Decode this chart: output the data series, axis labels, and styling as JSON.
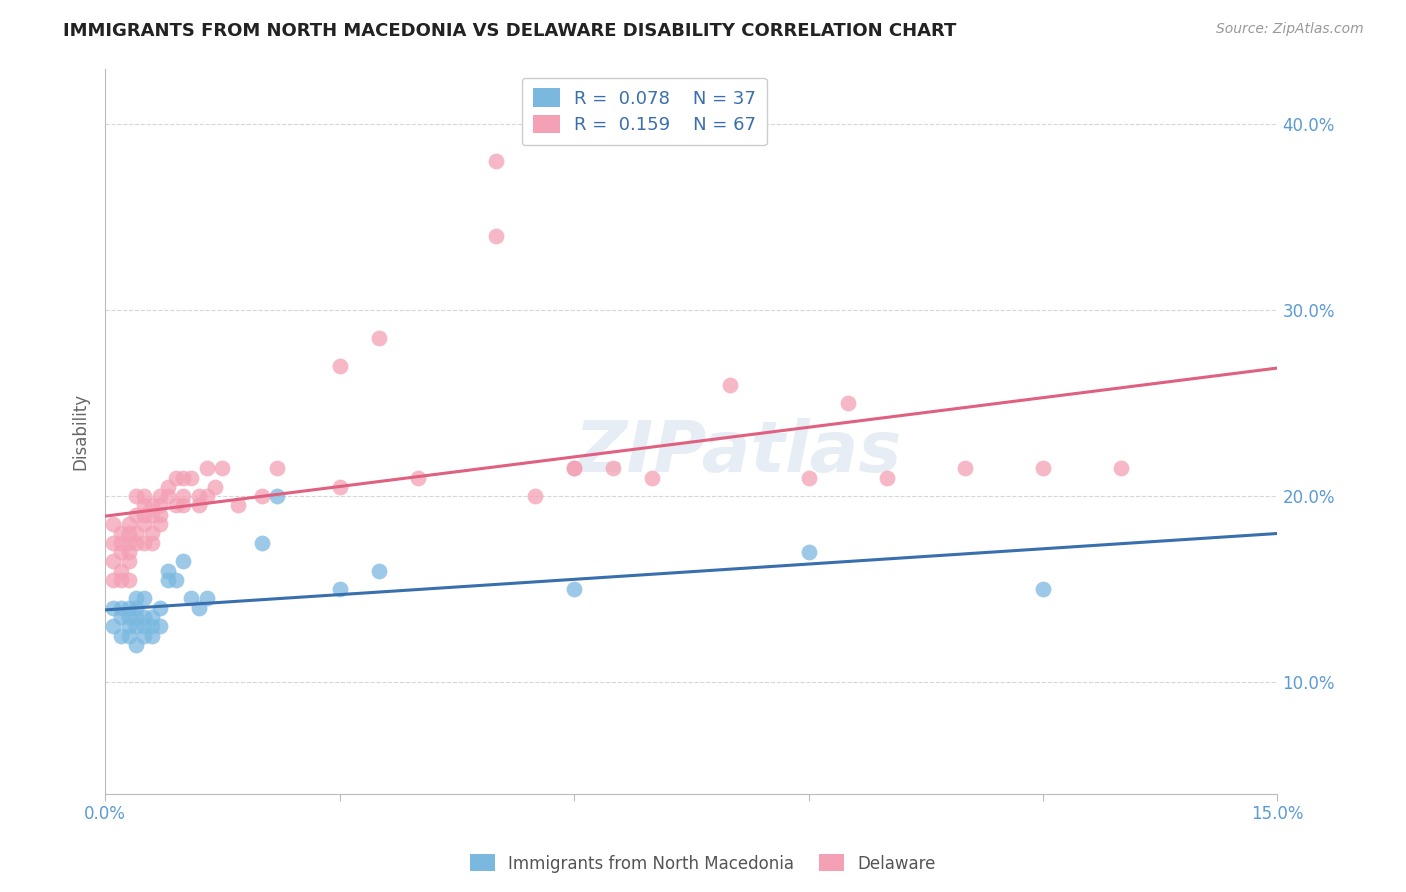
{
  "title": "IMMIGRANTS FROM NORTH MACEDONIA VS DELAWARE DISABILITY CORRELATION CHART",
  "source": "Source: ZipAtlas.com",
  "ylabel": "Disability",
  "watermark": "ZIPatlas",
  "legend_r_blue": "R =  0.078",
  "legend_n_blue": "N = 37",
  "legend_r_pink": "R =  0.159",
  "legend_n_pink": "N = 67",
  "xlim": [
    0.0,
    0.15
  ],
  "ylim": [
    0.04,
    0.43
  ],
  "yticks": [
    0.1,
    0.2,
    0.3,
    0.4
  ],
  "ytick_labels": [
    "10.0%",
    "20.0%",
    "30.0%",
    "40.0%"
  ],
  "xticks": [
    0.0,
    0.03,
    0.06,
    0.09,
    0.12,
    0.15
  ],
  "xtick_labels": [
    "0.0%",
    "",
    "",
    "",
    "",
    "15.0%"
  ],
  "blue_color": "#7ab8e0",
  "pink_color": "#f4a0b5",
  "blue_line_color": "#3a6fad",
  "pink_line_color": "#e06080",
  "grid_color": "#cccccc",
  "bg_color": "#ffffff",
  "title_color": "#222222",
  "axis_label_color": "#5b9bd5",
  "blue_x": [
    0.001,
    0.001,
    0.002,
    0.002,
    0.002,
    0.003,
    0.003,
    0.003,
    0.003,
    0.004,
    0.004,
    0.004,
    0.004,
    0.004,
    0.005,
    0.005,
    0.005,
    0.005,
    0.006,
    0.006,
    0.006,
    0.007,
    0.007,
    0.008,
    0.008,
    0.009,
    0.01,
    0.011,
    0.012,
    0.013,
    0.02,
    0.022,
    0.03,
    0.035,
    0.06,
    0.09,
    0.12
  ],
  "blue_y": [
    0.13,
    0.14,
    0.125,
    0.135,
    0.14,
    0.13,
    0.14,
    0.135,
    0.125,
    0.13,
    0.14,
    0.145,
    0.135,
    0.12,
    0.13,
    0.135,
    0.145,
    0.125,
    0.13,
    0.135,
    0.125,
    0.13,
    0.14,
    0.155,
    0.16,
    0.155,
    0.165,
    0.145,
    0.14,
    0.145,
    0.175,
    0.2,
    0.15,
    0.16,
    0.15,
    0.17,
    0.15
  ],
  "pink_x": [
    0.001,
    0.001,
    0.001,
    0.001,
    0.002,
    0.002,
    0.002,
    0.002,
    0.002,
    0.003,
    0.003,
    0.003,
    0.003,
    0.003,
    0.003,
    0.004,
    0.004,
    0.004,
    0.004,
    0.005,
    0.005,
    0.005,
    0.005,
    0.005,
    0.006,
    0.006,
    0.006,
    0.006,
    0.007,
    0.007,
    0.007,
    0.007,
    0.008,
    0.008,
    0.009,
    0.009,
    0.01,
    0.01,
    0.01,
    0.011,
    0.012,
    0.012,
    0.013,
    0.013,
    0.014,
    0.015,
    0.017,
    0.02,
    0.022,
    0.03,
    0.03,
    0.035,
    0.04,
    0.05,
    0.055,
    0.06,
    0.06,
    0.065,
    0.07,
    0.08,
    0.09,
    0.095,
    0.1,
    0.11,
    0.12,
    0.13,
    0.05
  ],
  "pink_y": [
    0.165,
    0.175,
    0.155,
    0.185,
    0.155,
    0.16,
    0.17,
    0.18,
    0.175,
    0.155,
    0.17,
    0.165,
    0.175,
    0.18,
    0.185,
    0.175,
    0.18,
    0.2,
    0.19,
    0.19,
    0.185,
    0.195,
    0.2,
    0.175,
    0.175,
    0.18,
    0.19,
    0.195,
    0.185,
    0.2,
    0.19,
    0.195,
    0.2,
    0.205,
    0.21,
    0.195,
    0.2,
    0.21,
    0.195,
    0.21,
    0.2,
    0.195,
    0.2,
    0.215,
    0.205,
    0.215,
    0.195,
    0.2,
    0.215,
    0.27,
    0.205,
    0.285,
    0.21,
    0.34,
    0.2,
    0.215,
    0.215,
    0.215,
    0.21,
    0.26,
    0.21,
    0.25,
    0.21,
    0.215,
    0.215,
    0.215,
    0.38
  ]
}
